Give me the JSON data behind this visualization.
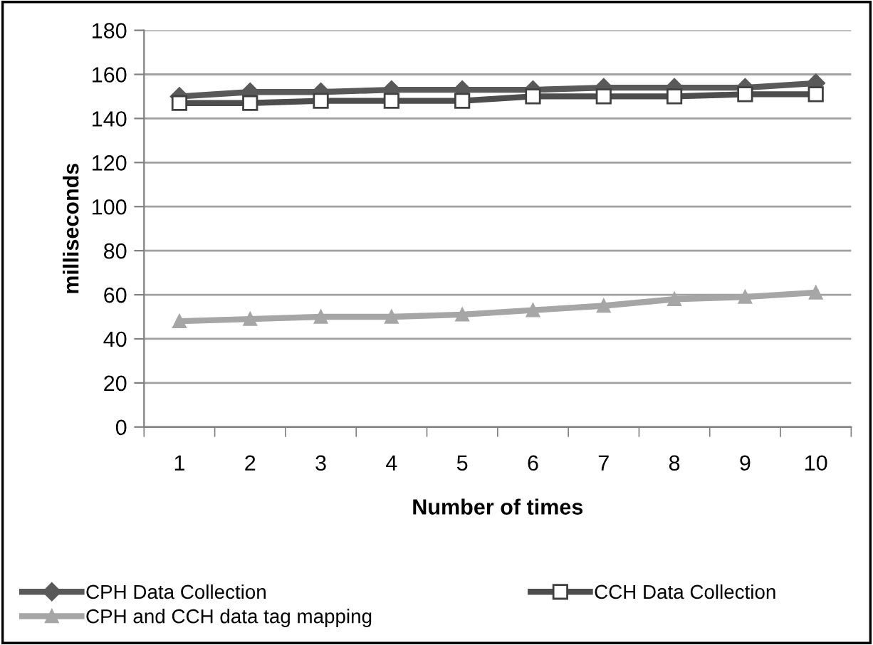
{
  "chart_data": {
    "type": "line",
    "xlabel": "Number of times",
    "ylabel": "milliseconds",
    "categories": [
      "1",
      "2",
      "3",
      "4",
      "5",
      "6",
      "7",
      "8",
      "9",
      "10"
    ],
    "series": [
      {
        "name": "CPH Data Collection",
        "color": "#595959",
        "marker": "diamond",
        "values": [
          150,
          152,
          152,
          153,
          153,
          153,
          154,
          154,
          154,
          156
        ]
      },
      {
        "name": "CCH Data Collection",
        "color": "#4d4d4d",
        "marker": "square",
        "values": [
          147,
          147,
          148,
          148,
          148,
          150,
          150,
          150,
          151,
          151
        ]
      },
      {
        "name": "CPH and CCH data tag mapping",
        "color": "#a6a6a6",
        "marker": "triangle",
        "values": [
          48,
          49,
          50,
          50,
          51,
          53,
          55,
          58,
          59,
          61
        ]
      }
    ],
    "ylim": [
      0,
      180
    ],
    "yticks": [
      0,
      20,
      40,
      60,
      80,
      100,
      120,
      140,
      160,
      180
    ],
    "grid": "y",
    "legend": "bottom"
  }
}
